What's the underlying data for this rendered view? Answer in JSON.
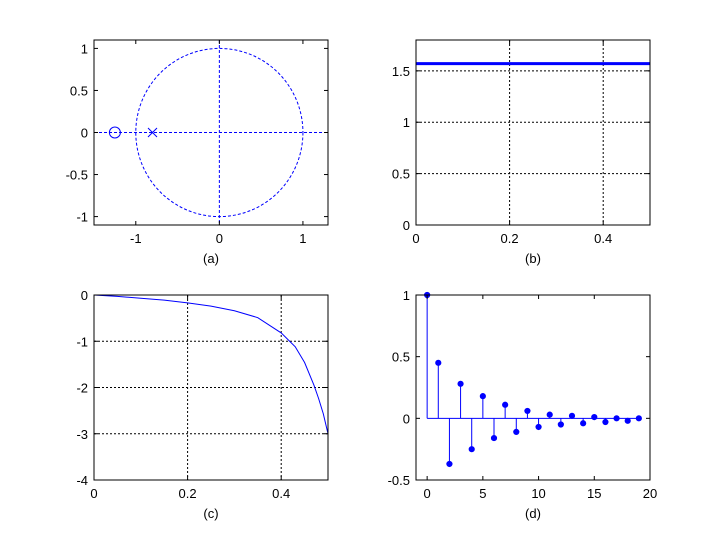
{
  "chart_data": [
    {
      "type": "scatter",
      "subplot": "(a)",
      "xlabel": "(a)",
      "xlim": [
        -1.5,
        1.3
      ],
      "ylim": [
        -1.1,
        1.1
      ],
      "xticks": [
        "-1",
        "0",
        "1"
      ],
      "yticks": [
        "-1",
        "-0.5",
        "0",
        "0.5",
        "1"
      ],
      "grid": false,
      "unit_circle": true,
      "axes_lines": true,
      "zeros": [
        {
          "x": -1.25,
          "y": 0
        }
      ],
      "poles": [
        {
          "x": -0.8,
          "y": 0
        }
      ],
      "color": "#0000ff"
    },
    {
      "type": "line",
      "subplot": "(b)",
      "xlabel": "(b)",
      "xlim": [
        0,
        0.5
      ],
      "ylim": [
        0,
        1.8
      ],
      "xticks": [
        "0",
        "0.2",
        "0.4"
      ],
      "yticks": [
        "0",
        "0.5",
        "1",
        "1.5"
      ],
      "grid": true,
      "series": [
        {
          "x": [
            0,
            0.5
          ],
          "y": [
            1.57,
            1.57
          ]
        }
      ],
      "color": "#0000ff"
    },
    {
      "type": "line",
      "subplot": "(c)",
      "xlabel": "(c)",
      "xlim": [
        0,
        0.5
      ],
      "ylim": [
        -4,
        0
      ],
      "xticks": [
        "0",
        "0.2",
        "0.4"
      ],
      "yticks": [
        "-4",
        "-3",
        "-2",
        "-1",
        "0"
      ],
      "grid": true,
      "series": [
        {
          "x": [
            0.0,
            0.05,
            0.1,
            0.15,
            0.2,
            0.25,
            0.3,
            0.35,
            0.4,
            0.43,
            0.45,
            0.47,
            0.48,
            0.49,
            0.5
          ],
          "y": [
            0.0,
            -0.03,
            -0.07,
            -0.11,
            -0.17,
            -0.24,
            -0.34,
            -0.49,
            -0.82,
            -1.12,
            -1.46,
            -1.95,
            -2.24,
            -2.57,
            -3.0
          ]
        }
      ],
      "color": "#0000ff"
    },
    {
      "type": "stem",
      "subplot": "(d)",
      "xlabel": "(d)",
      "xlim": [
        -1,
        20
      ],
      "ylim": [
        -0.5,
        1
      ],
      "xticks": [
        "0",
        "5",
        "10",
        "15",
        "20"
      ],
      "yticks": [
        "-0.5",
        "0",
        "0.5",
        "1"
      ],
      "grid": false,
      "series": [
        {
          "x": [
            0,
            1,
            2,
            3,
            4,
            5,
            6,
            7,
            8,
            9,
            10,
            11,
            12,
            13,
            14,
            15,
            16,
            17,
            18,
            19
          ],
          "y": [
            1.0,
            0.45,
            -0.37,
            0.28,
            -0.25,
            0.18,
            -0.16,
            0.11,
            -0.11,
            0.06,
            -0.07,
            0.03,
            -0.05,
            0.02,
            -0.04,
            0.01,
            -0.03,
            0.0,
            -0.02,
            0.0
          ]
        }
      ],
      "color": "#0000ff"
    }
  ]
}
